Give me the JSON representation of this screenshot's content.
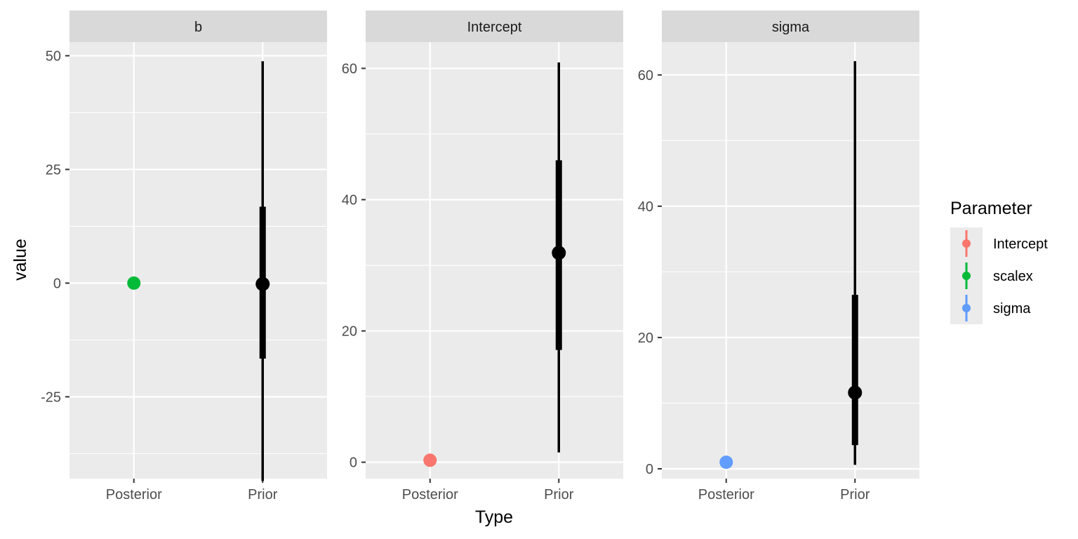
{
  "chart_data": {
    "type": "pointrange",
    "xlabel": "Type",
    "ylabel": "value",
    "categories": [
      "Posterior",
      "Prior"
    ],
    "legend": {
      "title": "Parameter",
      "position": "right",
      "items": [
        {
          "label": "Intercept",
          "color": "#F8766D"
        },
        {
          "label": "scalex",
          "color": "#00BA38"
        },
        {
          "label": "sigma",
          "color": "#619CFF"
        }
      ]
    },
    "panels": [
      {
        "strip": "b",
        "ylim": [
          -43,
          53
        ],
        "yticks": [
          50,
          25,
          0,
          -25
        ],
        "ytick_labels": [
          "50",
          "25",
          "0",
          "-25"
        ],
        "posterior": {
          "parameter": "scalex",
          "color": "#00BA38",
          "value": 0
        },
        "prior": {
          "value": -0.2,
          "inner": [
            -16.6,
            16.8
          ],
          "outer": [
            -43.5,
            48.8
          ]
        }
      },
      {
        "strip": "Intercept",
        "ylim": [
          -2.5,
          64
        ],
        "yticks": [
          60,
          40,
          20,
          0
        ],
        "ytick_labels": [
          "60",
          "40",
          "20",
          "0"
        ],
        "posterior": {
          "parameter": "Intercept",
          "color": "#F8766D",
          "value": 0.3
        },
        "prior": {
          "value": 31.9,
          "inner": [
            17.1,
            46
          ],
          "outer": [
            1.5,
            60.9
          ]
        }
      },
      {
        "strip": "sigma",
        "ylim": [
          -1.5,
          65
        ],
        "yticks": [
          60,
          40,
          20,
          0
        ],
        "ytick_labels": [
          "60",
          "40",
          "20",
          "0"
        ],
        "posterior": {
          "parameter": "sigma",
          "color": "#619CFF",
          "value": 1
        },
        "prior": {
          "value": 11.6,
          "inner": [
            3.6,
            26.5
          ],
          "outer": [
            0.6,
            62.1
          ]
        }
      }
    ],
    "grid": true
  }
}
